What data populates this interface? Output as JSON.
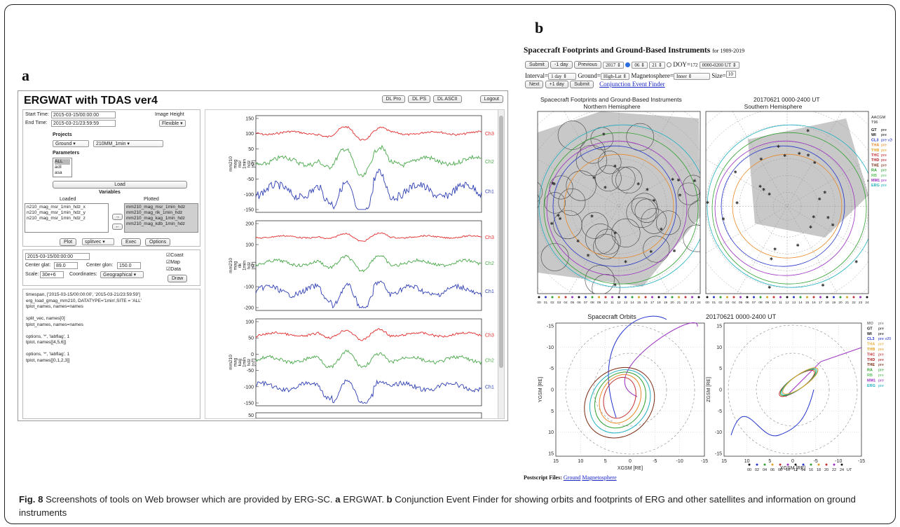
{
  "panel_a": {
    "letter": "a",
    "title": "ERGWAT with TDAS ver4",
    "top_buttons": [
      "DL Pro",
      "DL PS",
      "DL ASCII"
    ],
    "logout": "Logout",
    "start_time_label": "Start Time:",
    "start_time": "2015-03-15/00:00:00",
    "end_time_label": "End Time:",
    "end_time": "2015-03-21/23:59:59",
    "image_height_label": "Image Height",
    "image_height": "Flexible",
    "projects_label": "Projects",
    "project": "Ground",
    "dataset": "210MM_1min",
    "parameters_label": "Parameters",
    "parameters": [
      "ALL",
      "acll",
      "asa"
    ],
    "load": "Load",
    "variables_label": "Variables",
    "loaded_label": "Loaded",
    "plotted_label": "Plotted",
    "loaded": [
      "n210_mag_msr_1min_hdz_x",
      "n210_mag_msr_1min_hdz_y",
      "n210_mag_msr_1min_hdz_z"
    ],
    "plotted": [
      "mm210_mag_msr_1min_hdz",
      "mm210_mag_rik_1min_hdz",
      "mm210_mag_kag_1min_hdz",
      "mm210_mag_kdb_1min_hdz"
    ],
    "move_right": "→",
    "move_left": "←",
    "plot": "Plot",
    "plot_mode": "splitvec",
    "exec": "Exec",
    "options": "Options",
    "map_time": "2015-03-15/00:00:00",
    "center_glat_label": "Center glat:",
    "center_glat": "89.0",
    "center_glon_label": "Center glon:",
    "center_glon": "150.0",
    "scale_label": "Scale:",
    "scale": "30e+6",
    "coordinates_label": "Coordinates:",
    "coordinates": "Geographical",
    "checks": [
      "Coast",
      "Map",
      "Data"
    ],
    "draw": "Draw",
    "console": [
      "timespan, ['2015-03-15/00:00:00', '2015-03-21/23:59:59']",
      "erg_load_gmag_mm210, DATATYPE='1min',SITE = 'ALL'",
      "tplot_names, names=names",
      "",
      "split_vec, names[0]",
      "tplot_names, names=names",
      "",
      "options, '*', 'labflag', 1",
      "tplot, names[[4,5,6]]",
      "",
      "options, '*', 'labflag', 1",
      "tplot, names[[0,1,2,3]]"
    ],
    "ylabel_lines": [
      "mm210",
      "mag",
      "msr",
      "1min",
      "hdz",
      "[nT]"
    ],
    "ylabel_lines_2": [
      "mm210",
      "mag",
      "rik",
      "1min",
      "hdz",
      "[nT]"
    ],
    "ylabel_lines_3": [
      "mm210",
      "mag",
      "kag",
      "1min",
      "hdz",
      "[nT]"
    ],
    "channel_labels": [
      "Ch3",
      "Ch2",
      "Ch1"
    ],
    "panel1_ticks": [
      "150",
      "100",
      "50",
      "0",
      "-50",
      "-100",
      "-150"
    ],
    "panel2_ticks": [
      "200",
      "100",
      "0",
      "-100",
      "-200"
    ],
    "panel3_ticks": [
      "100",
      "50",
      "0",
      "-50",
      "-100",
      "-150"
    ],
    "panel4_tick": "50",
    "colors": {
      "ch3": "#e22a2a",
      "ch2": "#4aa84a",
      "ch1": "#2e3fb3"
    }
  },
  "panel_b": {
    "letter": "b",
    "title": "Spacecraft Footprints and Ground-Based Instruments",
    "subtitle": "for 1989-2019",
    "submit": "Submit",
    "minus_day": "-1 day",
    "previous": "Previous",
    "year": "2017",
    "month": "06",
    "day": "21",
    "doy_label": "DOY=",
    "doy": "172",
    "time_range": "0000-0200 UT",
    "interval_label": "Interval=",
    "interval": "1 day",
    "ground_label": "Ground=",
    "ground": "High-Lat",
    "magnetosphere_label": "Magnetosphere=",
    "magnetosphere": "Inner",
    "size_label": "Size=",
    "size": "10",
    "next": "Next",
    "plus_day": "+1 day",
    "submit2": "Submit",
    "conjunction_link": "Conjunction Event Finder",
    "fp_title": "Spacecraft Footprints and Ground-Based Instruments",
    "fp_date": "20170621  0000-2400 UT",
    "north": "Northern Hemisphere",
    "south": "Southern Hemisphere",
    "fp_legend_header": [
      "AACGM",
      "T96"
    ],
    "fp_legend": [
      {
        "name": "GT",
        "tag": "pre",
        "color": "#111111"
      },
      {
        "name": "WI",
        "tag": "pre",
        "color": "#111111"
      },
      {
        "name": "CL3",
        "tag": "pre v20",
        "color": "#2233cc"
      },
      {
        "name": "THA",
        "tag": "pre",
        "color": "#e98a2a"
      },
      {
        "name": "THB",
        "tag": "pre",
        "color": "#e0a020"
      },
      {
        "name": "THC",
        "tag": "pre",
        "color": "#c43030"
      },
      {
        "name": "THD",
        "tag": "pre",
        "color": "#b02020"
      },
      {
        "name": "THE",
        "tag": "pre",
        "color": "#7a2a10"
      },
      {
        "name": "RA",
        "tag": "pre",
        "color": "#30a030"
      },
      {
        "name": "RB",
        "tag": "pre",
        "color": "#60c060"
      },
      {
        "name": "MM1",
        "tag": "pre",
        "color": "#9b30c0"
      },
      {
        "name": "ERG",
        "tag": "pre",
        "color": "#20b0c0"
      }
    ],
    "hour_ticks": [
      "00",
      "01",
      "02",
      "03",
      "04",
      "05",
      "06",
      "07",
      "08",
      "09",
      "10",
      "11",
      "12",
      "13",
      "14",
      "15",
      "16",
      "17",
      "18",
      "19",
      "20",
      "21",
      "22",
      "23",
      "24"
    ],
    "orbit_title": "Spacecraft Orbits",
    "orbit_date": "20170621  0000-2400 UT",
    "orbit_legend": [
      {
        "name": "MO",
        "tag": "pre",
        "color": "#777777"
      },
      {
        "name": "GT",
        "tag": "pre",
        "color": "#111111"
      },
      {
        "name": "WI",
        "tag": "pre",
        "color": "#111111"
      },
      {
        "name": "CL3",
        "tag": "pre v20",
        "color": "#2233cc"
      },
      {
        "name": "THA",
        "tag": "pre",
        "color": "#e9b040"
      },
      {
        "name": "THB",
        "tag": "pre",
        "color": "#e0a020"
      },
      {
        "name": "THC",
        "tag": "pre",
        "color": "#c43030"
      },
      {
        "name": "THD",
        "tag": "pre",
        "color": "#b02020"
      },
      {
        "name": "THE",
        "tag": "pre",
        "color": "#7a2a10"
      },
      {
        "name": "RA",
        "tag": "pre",
        "color": "#30a030"
      },
      {
        "name": "RB",
        "tag": "pre",
        "color": "#60c060"
      },
      {
        "name": "MM1",
        "tag": "pre",
        "color": "#9b30c0"
      },
      {
        "name": "ERG",
        "tag": "pre",
        "color": "#20b0c0"
      }
    ],
    "orbit_x_ticks": [
      "15",
      "10",
      "5",
      "0",
      "-5",
      "-10",
      "-15"
    ],
    "orbit_y_ticks": [
      "-15",
      "-10",
      "-5",
      "0",
      "5",
      "10",
      "15"
    ],
    "orbit_x_ticks_2": [
      "15",
      "10",
      "5",
      "0",
      "-5",
      "-10",
      "-15"
    ],
    "orbit_z_ticks": [
      "15",
      "10",
      "5",
      "0",
      "-5",
      "-10",
      "-15"
    ],
    "orbit_xlabel": "XGSM [RE]",
    "orbit_ylabel": "YGSM [RE]",
    "orbit_zlabel": "ZGSM [RE]",
    "orbit_time_ticks": [
      "00",
      "02",
      "04",
      "06",
      "08",
      "10",
      "12",
      "14",
      "16",
      "18",
      "20",
      "22",
      "24"
    ],
    "orbit_time_unit": "UT",
    "postscript_label": "Postscript Files:",
    "postscript_links": [
      "Ground",
      "Magnetosphere"
    ]
  },
  "caption": {
    "figure": "Fig. 8",
    "text_1": "  Screenshots of tools on Web browser which are provided by ERG-SC. ",
    "a": "a",
    "text_2": " ERGWAT. ",
    "b": "b",
    "text_3": " Conjunction Event Finder for showing orbits and footprints of ERG and other satellites and information on ground instruments"
  }
}
